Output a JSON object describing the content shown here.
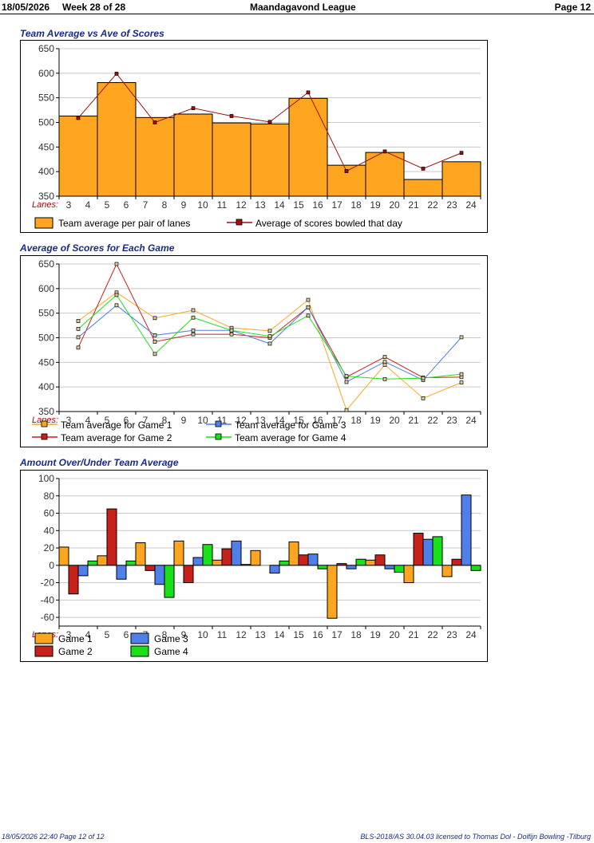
{
  "header": {
    "date": "18/05/2026",
    "week": "Week 28 of 28",
    "league": "Maandagavond League",
    "page": "Page 12"
  },
  "footer": {
    "left": "18/05/2026  22:40  Page 12 of 12",
    "right": "BLS-2018/AS 30.04.03 licensed to Thomas Dol - Dolfijn Bowling -Tilburg"
  },
  "lanes_label": "Lanes:",
  "colors": {
    "orange": "#FFA520",
    "red": "#C8201A",
    "blue": "#4F7FE8",
    "green": "#19E019",
    "darkred": "#A01010",
    "title": "#1a2a8a"
  },
  "chart_data": [
    {
      "type": "bar",
      "title": "Team Average vs Ave of Scores",
      "categories": [
        "3-4",
        "5-6",
        "7-8",
        "9-10",
        "11-12",
        "13-14",
        "15-16",
        "17-18",
        "19-20",
        "21-22",
        "23-24"
      ],
      "lane_ticks": [
        "3",
        "4",
        "5",
        "6",
        "7",
        "8",
        "9",
        "10",
        "11",
        "12",
        "13",
        "14",
        "15",
        "16",
        "17",
        "18",
        "19",
        "20",
        "21",
        "22",
        "23",
        "24"
      ],
      "ylim": [
        350,
        650
      ],
      "yticks": [
        350,
        400,
        450,
        500,
        550,
        600,
        650
      ],
      "series": [
        {
          "name": "Team average per pair of lanes",
          "kind": "bar",
          "color": "#FFA520",
          "values": [
            513,
            581,
            510,
            517,
            499,
            497,
            549,
            413,
            439,
            384,
            420
          ]
        },
        {
          "name": "Average of scores bowled that day",
          "kind": "line",
          "color": "#A01010",
          "values": [
            509,
            599,
            500,
            529,
            513,
            501,
            561,
            401,
            441,
            406,
            438
          ]
        }
      ],
      "legend_placement": "bottom",
      "grid": true
    },
    {
      "type": "line",
      "title": "Average of Scores for Each Game",
      "categories": [
        "3-4",
        "5-6",
        "7-8",
        "9-10",
        "11-12",
        "13-14",
        "15-16",
        "17-18",
        "19-20",
        "21-22",
        "23-24"
      ],
      "lane_ticks": [
        "3",
        "4",
        "5",
        "6",
        "7",
        "8",
        "9",
        "10",
        "11",
        "12",
        "13",
        "14",
        "15",
        "16",
        "17",
        "18",
        "19",
        "20",
        "21",
        "22",
        "23",
        "24"
      ],
      "ylim": [
        350,
        650
      ],
      "yticks": [
        350,
        400,
        450,
        500,
        550,
        600,
        650
      ],
      "series": [
        {
          "name": "Team average for Game 1",
          "color": "#FFA520",
          "values": [
            534,
            592,
            540,
            556,
            520,
            514,
            577,
            353,
            445,
            377,
            409
          ]
        },
        {
          "name": "Team average for Game 2",
          "color": "#C8201A",
          "values": [
            480,
            650,
            492,
            507,
            507,
            500,
            562,
            420,
            461,
            419,
            420
          ]
        },
        {
          "name": "Team average for Game 3",
          "color": "#4F7FE8",
          "values": [
            501,
            566,
            505,
            515,
            515,
            488,
            562,
            410,
            451,
            414,
            501
          ]
        },
        {
          "name": "Team average for Game 4",
          "color": "#19E019",
          "values": [
            518,
            587,
            467,
            541,
            515,
            503,
            545,
            422,
            416,
            418,
            426
          ]
        }
      ],
      "legend_placement": "bottom",
      "grid": true
    },
    {
      "type": "bar",
      "title": "Amount Over/Under Team Average",
      "categories": [
        "3-4",
        "5-6",
        "7-8",
        "9-10",
        "11-12",
        "13-14",
        "15-16",
        "17-18",
        "19-20",
        "21-22",
        "23-24"
      ],
      "lane_ticks": [
        "3",
        "4",
        "5",
        "6",
        "7",
        "8",
        "9",
        "10",
        "11",
        "12",
        "13",
        "14",
        "15",
        "16",
        "17",
        "18",
        "19",
        "20",
        "21",
        "22",
        "23",
        "24"
      ],
      "ylim": [
        -70,
        100
      ],
      "yticks": [
        -60,
        -40,
        -20,
        0,
        20,
        40,
        60,
        80,
        100
      ],
      "series": [
        {
          "name": "Game 1",
          "color": "#FFA520",
          "values": [
            21,
            11,
            26,
            28,
            6,
            17,
            27,
            -61,
            6,
            -20,
            -13
          ]
        },
        {
          "name": "Game 2",
          "color": "#C8201A",
          "values": [
            -33,
            65,
            -6,
            -20,
            19,
            0,
            12,
            2,
            12,
            37,
            7
          ]
        },
        {
          "name": "Game 3",
          "color": "#4F7FE8",
          "values": [
            -12,
            -16,
            -22,
            9,
            28,
            -9,
            13,
            -4,
            -4,
            30,
            81
          ]
        },
        {
          "name": "Game 4",
          "color": "#19E019",
          "values": [
            5,
            5,
            -37,
            24,
            1,
            5,
            -4,
            7,
            -8,
            33,
            -6
          ]
        }
      ],
      "legend_placement": "bottom",
      "grid": true
    }
  ]
}
